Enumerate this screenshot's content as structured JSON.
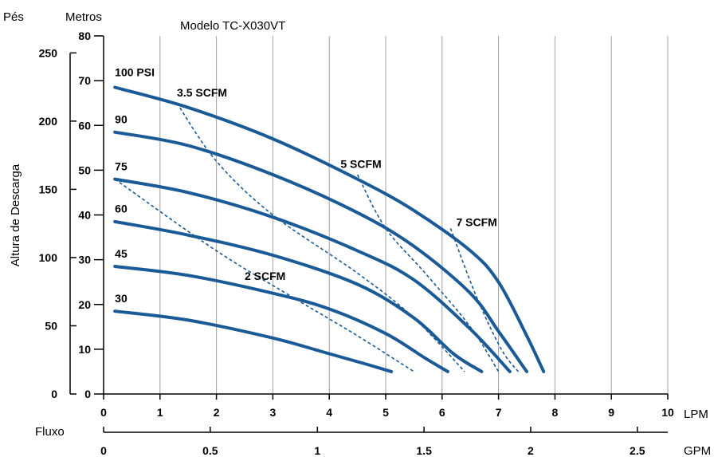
{
  "chart_data": {
    "type": "line",
    "title": "Modelo TC-X030VT",
    "xlabel_top": "LPM",
    "xlabel_bottom": "GPM",
    "x_side_label": "Fluxo",
    "ylabel": "Altura de Descarga",
    "y_left_unit": "Pés",
    "y_right_unit": "Metros",
    "xlim": [
      0,
      10
    ],
    "ylim_m": [
      0,
      80
    ],
    "grid": "vertical",
    "lpm_ticks": [
      "0",
      "1",
      "2",
      "3",
      "4",
      "5",
      "6",
      "7",
      "8",
      "9",
      "10"
    ],
    "gpm_ticks": [
      {
        "label": "0",
        "lpm": 0
      },
      {
        "label": "0.5",
        "lpm": 1.89
      },
      {
        "label": "1",
        "lpm": 3.79
      },
      {
        "label": "1.5",
        "lpm": 5.68
      },
      {
        "label": "2",
        "lpm": 7.57
      },
      {
        "label": "2.5",
        "lpm": 9.46
      }
    ],
    "meters_ticks": [
      "0",
      "10",
      "20",
      "30",
      "40",
      "50",
      "60",
      "70",
      "80"
    ],
    "feet_ticks": [
      {
        "label": "0",
        "m": 0
      },
      {
        "label": "50",
        "m": 15.24
      },
      {
        "label": "100",
        "m": 30.48
      },
      {
        "label": "150",
        "m": 45.72
      },
      {
        "label": "200",
        "m": 60.96
      },
      {
        "label": "250",
        "m": 76.2
      }
    ],
    "series": [
      {
        "name": "100 PSI",
        "points": [
          [
            0.2,
            68.5
          ],
          [
            1.5,
            64
          ],
          [
            3,
            57
          ],
          [
            4.5,
            48
          ],
          [
            5.5,
            41
          ],
          [
            6.5,
            32
          ],
          [
            7,
            25
          ],
          [
            7.5,
            13
          ],
          [
            7.8,
            5
          ]
        ]
      },
      {
        "name": "90",
        "points": [
          [
            0.2,
            58.5
          ],
          [
            1.5,
            55.5
          ],
          [
            3,
            49
          ],
          [
            4.5,
            40.5
          ],
          [
            5.5,
            33
          ],
          [
            6.5,
            22.5
          ],
          [
            7,
            14
          ],
          [
            7.5,
            5
          ]
        ]
      },
      {
        "name": "75",
        "points": [
          [
            0.2,
            48
          ],
          [
            1.5,
            45
          ],
          [
            3,
            39.5
          ],
          [
            4.5,
            32
          ],
          [
            5.5,
            25.5
          ],
          [
            6.5,
            14.5
          ],
          [
            7.2,
            5
          ]
        ]
      },
      {
        "name": "60",
        "points": [
          [
            0.2,
            38.5
          ],
          [
            1.5,
            35.5
          ],
          [
            3,
            31
          ],
          [
            4.5,
            24.5
          ],
          [
            5.5,
            17
          ],
          [
            6.2,
            9
          ],
          [
            6.7,
            5
          ]
        ]
      },
      {
        "name": "45",
        "points": [
          [
            0.2,
            28.5
          ],
          [
            1.5,
            26.5
          ],
          [
            3,
            22.5
          ],
          [
            4,
            19
          ],
          [
            5,
            13.5
          ],
          [
            5.7,
            8
          ],
          [
            6.1,
            5
          ]
        ]
      },
      {
        "name": "30",
        "points": [
          [
            0.2,
            18.5
          ],
          [
            1.5,
            16.5
          ],
          [
            3,
            12.5
          ],
          [
            4,
            9
          ],
          [
            4.7,
            6.5
          ],
          [
            5.1,
            5
          ]
        ]
      }
    ],
    "scfm_lines": [
      {
        "name": "2 SCFM",
        "points": [
          [
            0.2,
            48
          ],
          [
            2,
            32
          ],
          [
            3.5,
            20.5
          ],
          [
            4.5,
            13
          ],
          [
            5.5,
            5
          ]
        ]
      },
      {
        "name": "3.5 SCFM",
        "points": [
          [
            1.3,
            65
          ],
          [
            2,
            52
          ],
          [
            3,
            40
          ],
          [
            4.5,
            27
          ],
          [
            5.5,
            17
          ],
          [
            6.4,
            5
          ]
        ]
      },
      {
        "name": "5 SCFM",
        "points": [
          [
            4.5,
            49
          ],
          [
            5,
            37
          ],
          [
            5.7,
            27
          ],
          [
            6.5,
            15
          ],
          [
            7.0,
            5
          ]
        ]
      },
      {
        "name": "7 SCFM",
        "points": [
          [
            6.15,
            37
          ],
          [
            6.6,
            22
          ],
          [
            7.05,
            10
          ],
          [
            7.35,
            5
          ]
        ]
      }
    ],
    "annotations": [
      {
        "text": "100 PSI",
        "x": 0.2,
        "y": 71
      },
      {
        "text": "90",
        "x": 0.2,
        "y": 60.5
      },
      {
        "text": "75",
        "x": 0.2,
        "y": 50
      },
      {
        "text": "60",
        "x": 0.2,
        "y": 40.5
      },
      {
        "text": "45",
        "x": 0.2,
        "y": 30.5
      },
      {
        "text": "30",
        "x": 0.2,
        "y": 20.5
      },
      {
        "text": "3.5 SCFM",
        "x": 1.3,
        "y": 66.5
      },
      {
        "text": "5 SCFM",
        "x": 4.2,
        "y": 50.5
      },
      {
        "text": "7 SCFM",
        "x": 6.25,
        "y": 37.5
      },
      {
        "text": "2 SCFM",
        "x": 2.5,
        "y": 25.5
      }
    ],
    "colors": {
      "curve": "#1a5a96",
      "grid": "#a0a0a0",
      "axis": "#000000"
    }
  }
}
